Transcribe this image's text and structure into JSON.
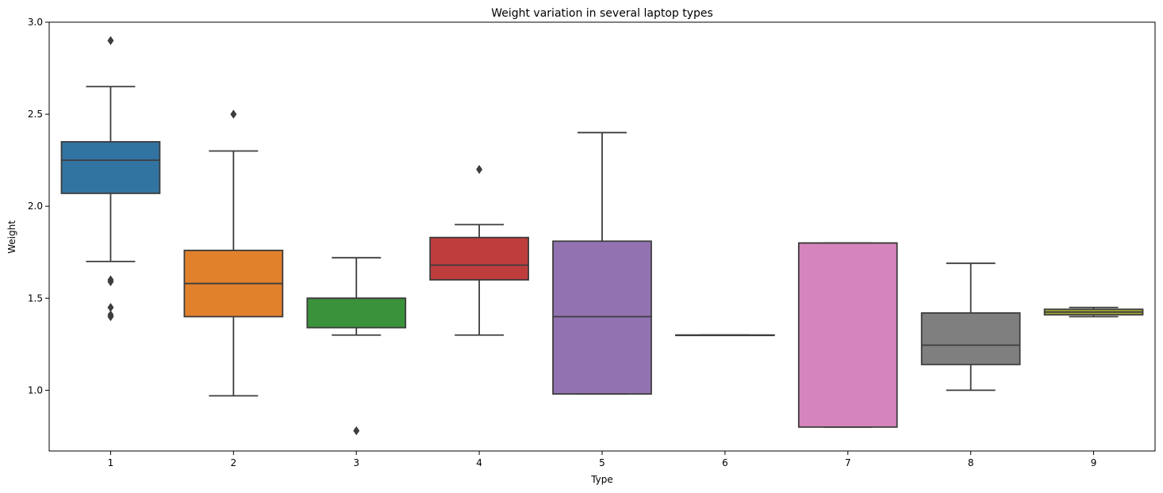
{
  "chart_data": {
    "type": "box",
    "title": "Weight variation in several laptop types",
    "xlabel": "Type",
    "ylabel": "Weight",
    "ylim": [
      0.67,
      3.0
    ],
    "yticks": [
      1.0,
      1.5,
      2.0,
      2.5,
      3.0
    ],
    "categories": [
      "1",
      "2",
      "3",
      "4",
      "5",
      "6",
      "7",
      "8",
      "9"
    ],
    "boxes": [
      {
        "category": "1",
        "color": "#3274a1",
        "whisker_low": 1.7,
        "q1": 2.07,
        "median": 2.25,
        "q3": 2.35,
        "whisker_high": 2.65,
        "outliers": [
          1.4,
          1.41,
          1.45,
          1.59,
          1.6,
          2.9
        ]
      },
      {
        "category": "2",
        "color": "#e1812c",
        "whisker_low": 0.97,
        "q1": 1.4,
        "median": 1.58,
        "q3": 1.76,
        "whisker_high": 2.3,
        "outliers": [
          2.5
        ]
      },
      {
        "category": "3",
        "color": "#3a923a",
        "whisker_low": 1.3,
        "q1": 1.34,
        "median": 1.5,
        "q3": 1.5,
        "whisker_high": 1.72,
        "outliers": [
          0.78
        ]
      },
      {
        "category": "4",
        "color": "#c03d3e",
        "whisker_low": 1.3,
        "q1": 1.6,
        "median": 1.68,
        "q3": 1.83,
        "whisker_high": 1.9,
        "outliers": [
          2.2
        ]
      },
      {
        "category": "5",
        "color": "#9372b2",
        "whisker_low": 0.98,
        "q1": 0.98,
        "median": 1.4,
        "q3": 1.81,
        "whisker_high": 2.4,
        "outliers": []
      },
      {
        "category": "6",
        "color": "#845b53",
        "whisker_low": 1.3,
        "q1": 1.3,
        "median": 1.3,
        "q3": 1.3,
        "whisker_high": 1.3,
        "outliers": []
      },
      {
        "category": "7",
        "color": "#d684bd",
        "whisker_low": 0.8,
        "q1": 0.8,
        "median": 1.8,
        "q3": 1.8,
        "whisker_high": 1.8,
        "outliers": []
      },
      {
        "category": "8",
        "color": "#7f7f7f",
        "whisker_low": 1.0,
        "q1": 1.14,
        "median": 1.245,
        "q3": 1.42,
        "whisker_high": 1.69,
        "outliers": []
      },
      {
        "category": "9",
        "color": "#a9aa35",
        "whisker_low": 1.4,
        "q1": 1.41,
        "median": 1.425,
        "q3": 1.44,
        "whisker_high": 1.45,
        "outliers": []
      }
    ],
    "grid": false,
    "legend": "none"
  }
}
